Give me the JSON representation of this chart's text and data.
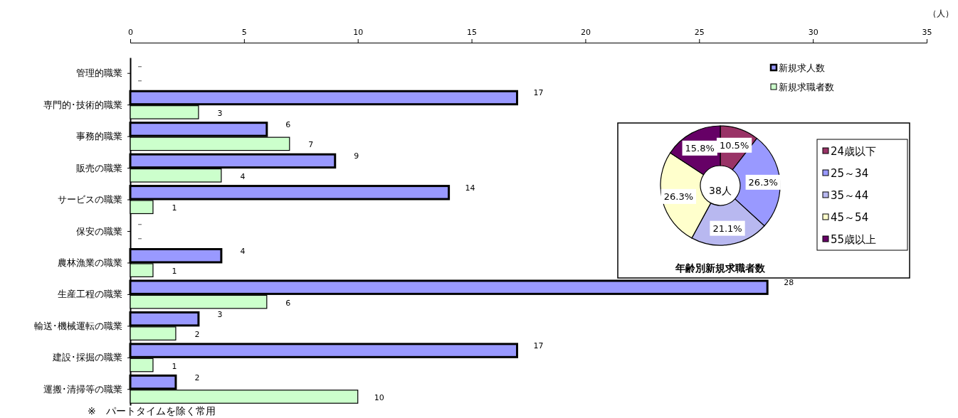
{
  "chart_data": [
    {
      "type": "bar",
      "orientation": "horizontal",
      "xlabel": "（人）",
      "categories": [
        "管理的職業",
        "専門的･技術的職業",
        "事務的職業",
        "販売の職業",
        "サービスの職業",
        "保安の職業",
        "農林漁業の職業",
        "生産工程の職業",
        "輸送･機械運転の職業",
        "建設･採掘の職業",
        "運搬･清掃等の職業"
      ],
      "series": [
        {
          "name": "新規求人数",
          "color": "#9999ff",
          "values": [
            null,
            17,
            6,
            9,
            14,
            null,
            4,
            28,
            3,
            17,
            2
          ],
          "value_labels": [
            "－",
            "17",
            "6",
            "9",
            "14",
            "－",
            "4",
            "28",
            "3",
            "17",
            "2"
          ]
        },
        {
          "name": "新規求職者数",
          "color": "#ccffcc",
          "values": [
            null,
            3,
            7,
            4,
            1,
            null,
            1,
            6,
            2,
            1,
            10
          ],
          "value_labels": [
            "－",
            "3",
            "7",
            "4",
            "1",
            "－",
            "1",
            "6",
            "2",
            "1",
            "10"
          ]
        }
      ],
      "xlim": [
        0,
        35
      ],
      "xticks": [
        0,
        5,
        10,
        15,
        20,
        25,
        30,
        35
      ],
      "grid": false,
      "legend": "top right",
      "annotations": [
        "※　パートタイムを除く常用"
      ]
    },
    {
      "type": "donut",
      "title": "年齢別新規求職者数",
      "categories": [
        "24歳以下",
        "25～34",
        "35～44",
        "45～54",
        "55歳以上"
      ],
      "values": [
        10.5,
        26.3,
        21.1,
        26.3,
        15.8
      ],
      "colors": [
        "#993366",
        "#9999ff",
        "#b8b8f0",
        "#ffffcc",
        "#660066"
      ],
      "value_labels": [
        "10.5%",
        "26.3%",
        "21.1%",
        "26.3%",
        "15.8%"
      ],
      "legend": "right",
      "annotations": [
        "38人"
      ]
    }
  ]
}
